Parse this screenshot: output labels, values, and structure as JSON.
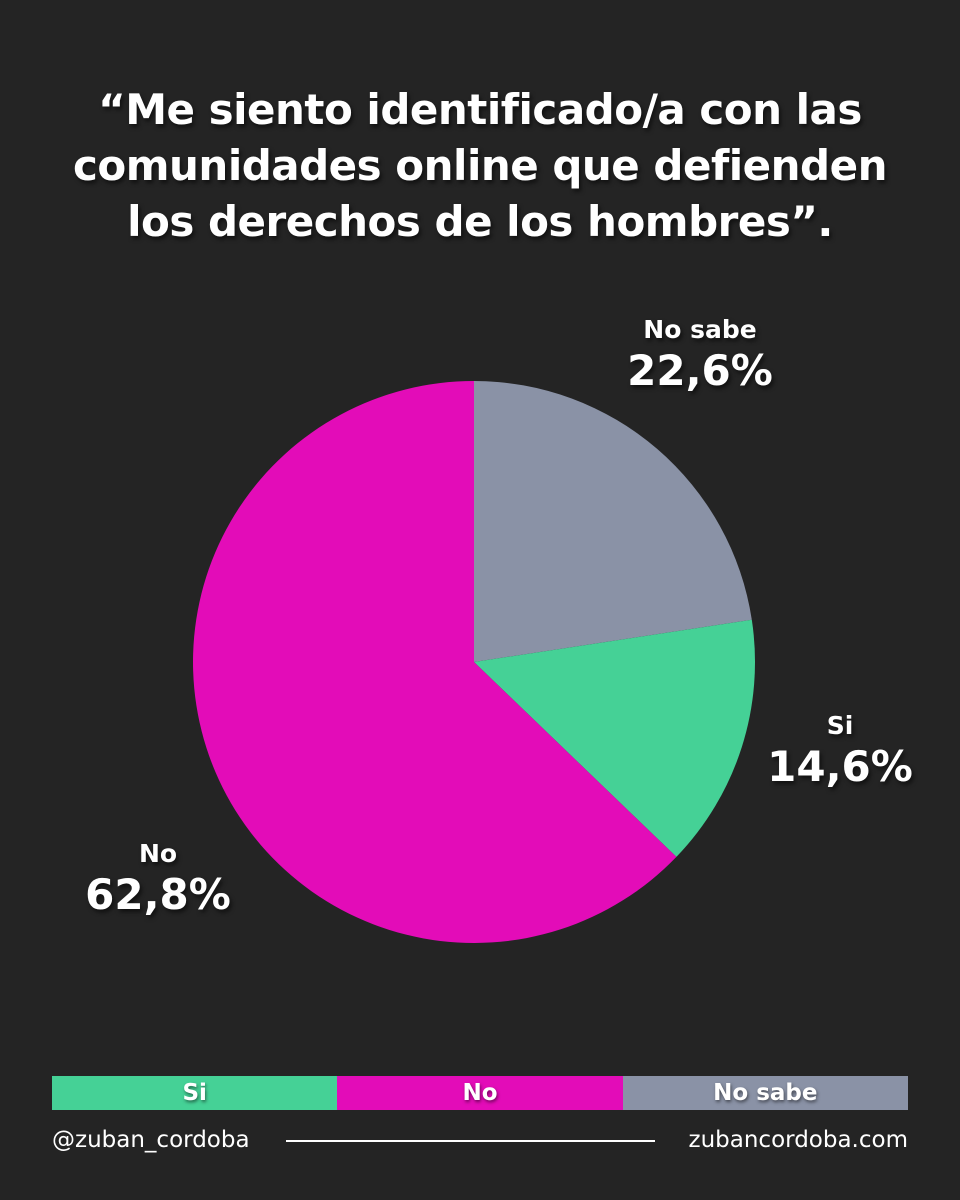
{
  "title_lines": [
    "“Me siento identificado/a con las",
    "comunidades online que defienden",
    "los derechos de los hombres”."
  ],
  "chart_data": {
    "type": "pie",
    "slices": [
      {
        "label": "No sabe",
        "value": 22.6,
        "display": "22,6%",
        "color": "#8a92a6"
      },
      {
        "label": "Si",
        "value": 14.6,
        "display": "14,6%",
        "color": "#45d196"
      },
      {
        "label": "No",
        "value": 62.8,
        "display": "62,8%",
        "color": "#e30cb8"
      }
    ],
    "start": "12 o'clock",
    "direction": "clockwise",
    "legend": {
      "position": "bottom",
      "items": [
        "Si",
        "No",
        "No sabe"
      ]
    }
  },
  "legend_colors": [
    "#45d196",
    "#e30cb8",
    "#8a92a6"
  ],
  "footer": {
    "handle": "@zuban_cordoba",
    "website": "zubancordoba.com"
  }
}
